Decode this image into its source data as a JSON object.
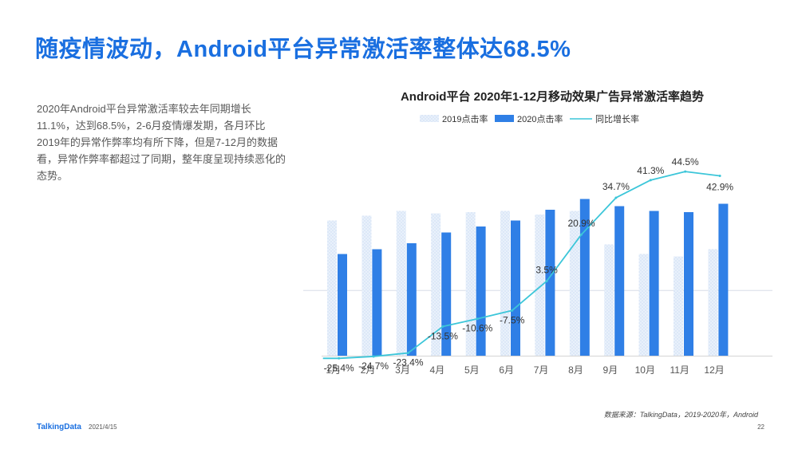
{
  "slide": {
    "title": "随疫情波动，Android平台异常激活率整体达68.5%",
    "description": "2020年Android平台异常激活率较去年同期增长11.1%，达到68.5%，2-6月疫情爆发期，各月环比2019年的异常作弊率均有所下降，但是7-12月的数据看，异常作弊率都超过了同期，整年度呈现持续恶化的态势。",
    "source": "数据来源：TalkingData，2019-2020年，Android",
    "footer_logo": "TalkingData",
    "footer_date": "2021/4/15",
    "page_number": "22"
  },
  "colors": {
    "title": "#1a6fe0",
    "bar_2019": "#dde9f8",
    "bar_2020": "#2f7fe6",
    "line_yoy": "#3cc6d9"
  },
  "chart_data": {
    "type": "bar",
    "title": "Android平台   2020年1-12月移动效果广告异常激活率趋势",
    "categories": [
      "1月",
      "2月",
      "3月",
      "4月",
      "5月",
      "6月",
      "7月",
      "8月",
      "9月",
      "10月",
      "11月",
      "12月"
    ],
    "series": [
      {
        "name": "2019点击率",
        "kind": "bar",
        "values": [
          56.5,
          58.5,
          60.5,
          59.5,
          60.0,
          60.5,
          59.0,
          60.5,
          46.5,
          42.5,
          41.5,
          44.5
        ]
      },
      {
        "name": "2020点击率",
        "kind": "bar",
        "values": [
          42.5,
          44.5,
          47.0,
          51.5,
          54.0,
          56.5,
          61.0,
          65.5,
          62.5,
          60.5,
          60.0,
          63.5
        ]
      },
      {
        "name": "同比增长率",
        "kind": "line",
        "values": [
          -25.4,
          -24.7,
          -23.4,
          -13.5,
          -10.6,
          -7.5,
          3.5,
          20.9,
          34.7,
          41.3,
          44.5,
          42.9
        ],
        "labels": [
          "-25.4%",
          "-24.7%",
          "-23.4%",
          "-13.5%",
          "-10.6%",
          "-7.5%",
          "3.5%",
          "20.9%",
          "34.7%",
          "41.3%",
          "44.5%",
          "42.9%"
        ]
      }
    ],
    "bar_axis_range": [
      0,
      90
    ],
    "line_axis_range": [
      -28,
      52
    ],
    "reference_line_value": 0,
    "grid": false,
    "legend_position": "top-left"
  }
}
